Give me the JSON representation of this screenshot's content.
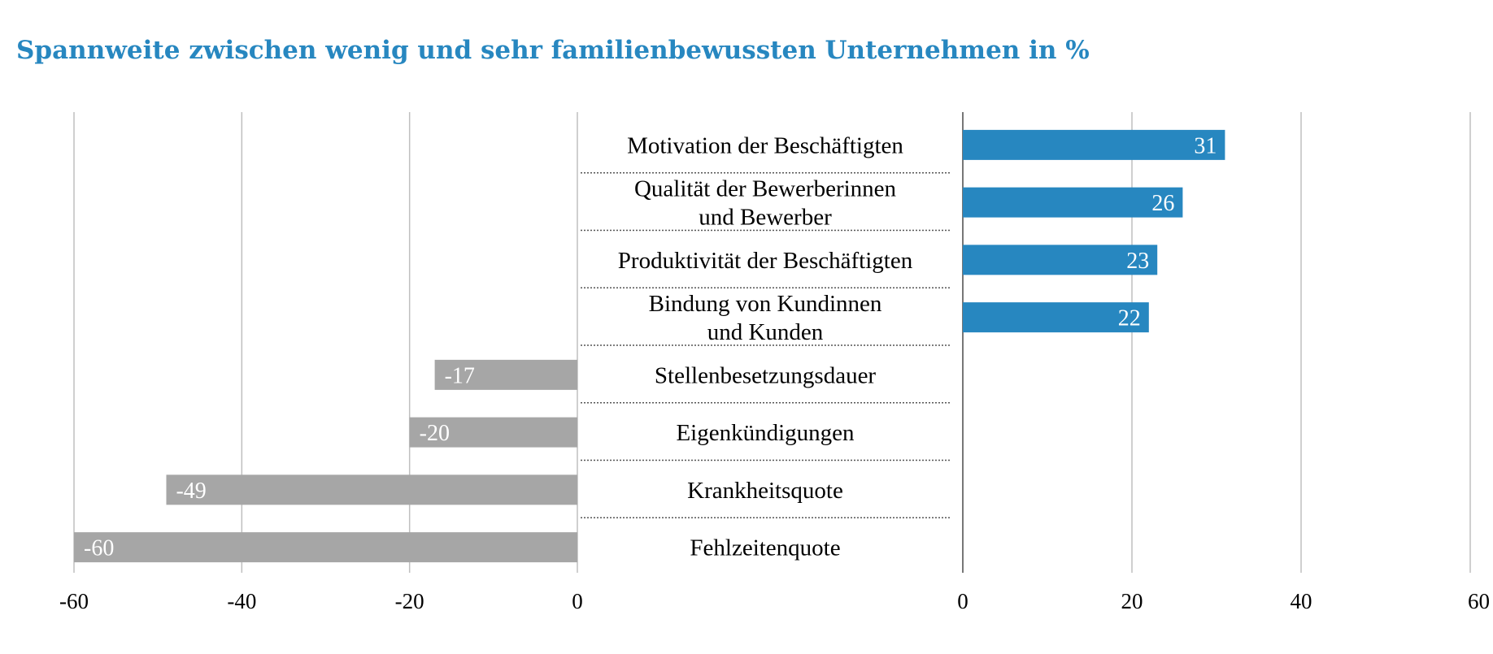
{
  "chart_data": {
    "type": "bar",
    "title": "Spannweite zwischen wenig und sehr familienbewussten Unternehmen in %",
    "categories": [
      [
        "Motivation der Beschäftigten"
      ],
      [
        "Qualität der Bewerberinnen",
        "und Bewerber"
      ],
      [
        "Produktivität der Beschäftigten"
      ],
      [
        "Bindung von Kundinnen",
        "und Kunden"
      ],
      [
        "Stellenbesetzungsdauer"
      ],
      [
        "Eigenkündigungen"
      ],
      [
        "Krankheitsquote"
      ],
      [
        "Fehlzeitenquote"
      ]
    ],
    "values": [
      31,
      26,
      23,
      22,
      -17,
      -20,
      -49,
      -60
    ],
    "value_labels": [
      "31",
      "26",
      "23",
      "22",
      "-17",
      "-20",
      "-49",
      "-60"
    ],
    "xlim_negative": [
      -60,
      0
    ],
    "xlim_positive": [
      0,
      60
    ],
    "ticks_negative": [
      "-60",
      "-40",
      "-20",
      "0"
    ],
    "ticks_positive": [
      "0",
      "20",
      "40",
      "60"
    ],
    "tick_values_negative": [
      -60,
      -40,
      -20,
      0
    ],
    "tick_values_positive": [
      0,
      20,
      40,
      60
    ],
    "grid": true,
    "colors": {
      "positive": "#2787c0",
      "negative": "#a6a6a6",
      "title": "#2787c0",
      "grid": "#bfbfbf",
      "separator": "#555555"
    }
  }
}
